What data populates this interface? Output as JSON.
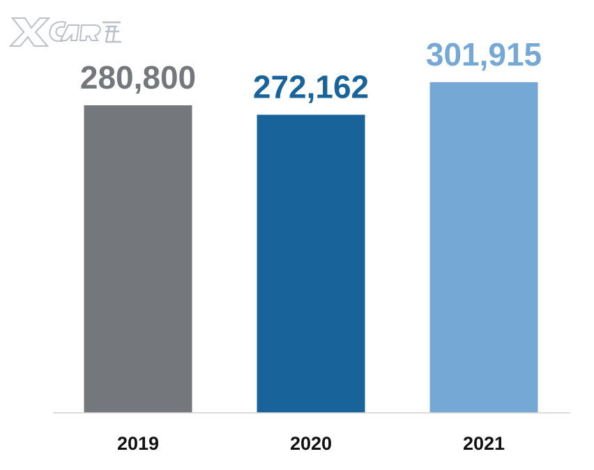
{
  "watermark": {
    "text": "XCAR爱卡"
  },
  "chart_data": {
    "type": "bar",
    "categories": [
      "2019",
      "2020",
      "2021"
    ],
    "values": [
      280800,
      272162,
      301915
    ],
    "value_labels": [
      "280,800",
      "272,162",
      "301,915"
    ],
    "colors": [
      "#74777c",
      "#186399",
      "#76a8d6"
    ],
    "title": "",
    "xlabel": "",
    "ylabel": "",
    "ylim": [
      0,
      340000
    ],
    "grid": false,
    "legend": "none"
  }
}
